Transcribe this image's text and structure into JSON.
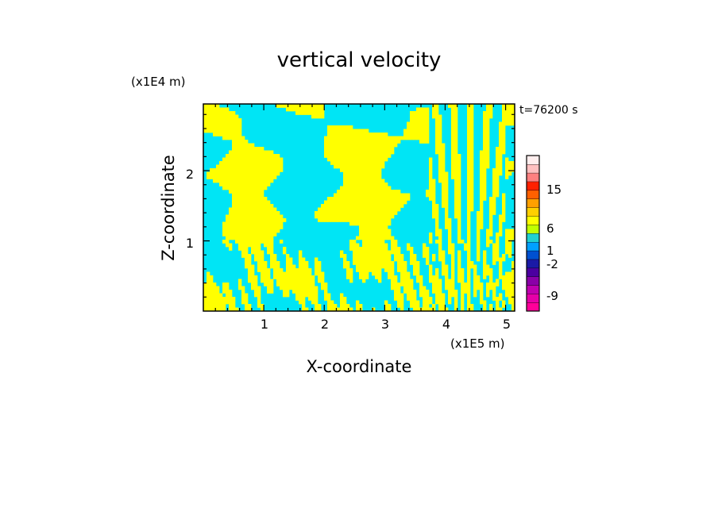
{
  "chart_data": {
    "type": "heatmap",
    "title": "vertical velocity",
    "xlabel": "X-coordinate",
    "ylabel": "Z-coordinate",
    "x_unit": "(x1E5 m)",
    "y_unit": "(x1E4 m)",
    "time_label": "t=76200 s",
    "xlim": [
      0,
      5.15
    ],
    "ylim": [
      0,
      2.95
    ],
    "x_ticks": [
      "1",
      "2",
      "3",
      "4",
      "5"
    ],
    "y_ticks": [
      "1",
      "2"
    ],
    "colors": {
      "positive_fill": "#ffff00",
      "negative_fill": "#00e5f5"
    },
    "colorbar": {
      "levels": [
        {
          "color": "#ff0099"
        },
        {
          "color": "#e600a8"
        },
        {
          "color": "#c000b0"
        },
        {
          "color": "#8a00a8"
        },
        {
          "color": "#4b00a0"
        },
        {
          "color": "#1a1aa6"
        },
        {
          "color": "#0050d0"
        },
        {
          "color": "#00a0ff"
        },
        {
          "color": "#20d0d0"
        },
        {
          "color": "#c0ff00"
        },
        {
          "color": "#ffff00"
        },
        {
          "color": "#ffd000"
        },
        {
          "color": "#ffa000"
        },
        {
          "color": "#ff6000"
        },
        {
          "color": "#ff2000"
        },
        {
          "color": "#ff8080"
        },
        {
          "color": "#ffc0c0"
        },
        {
          "color": "#ffeeee"
        }
      ],
      "tick_labels": [
        "15",
        "6",
        "1",
        "-2",
        "-9"
      ]
    }
  }
}
